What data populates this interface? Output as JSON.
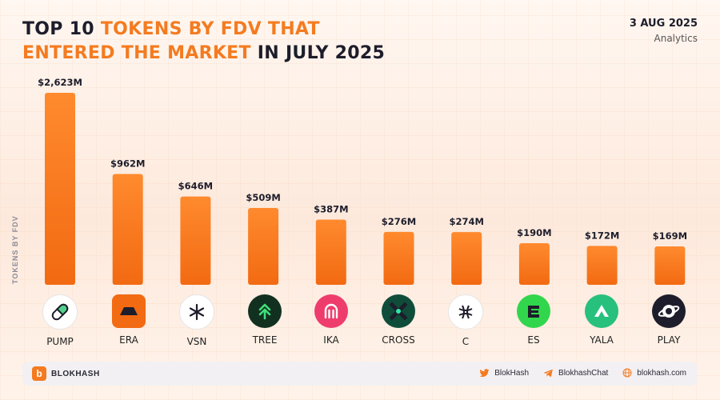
{
  "header": {
    "title_part1": "TOP 10 ",
    "title_part2": "TOKENS BY FDV THAT",
    "title_part3": "ENTERED THE MARKET",
    "title_part4": " IN JULY 2025",
    "date": "3 AUG 2025",
    "subtitle": "Analytics"
  },
  "chart_data": {
    "type": "bar",
    "ylabel": "TOKENS BY FDV",
    "xlabel": "",
    "categories": [
      "PUMP",
      "ERA",
      "VSN",
      "TREE",
      "IKA",
      "CROSS",
      "C",
      "ES",
      "YALA",
      "PLAY"
    ],
    "values": [
      2623,
      962,
      646,
      509,
      387,
      276,
      274,
      190,
      172,
      169
    ],
    "value_labels": [
      "$2,623M",
      "$962M",
      "$646M",
      "$509M",
      "$387M",
      "$276M",
      "$274M",
      "$190M",
      "$172M",
      "$169M"
    ],
    "unit": "$M",
    "scale": "compressed (non-linear) bar heights",
    "bar_color": "#f47b20",
    "grid": false,
    "legend": "none"
  },
  "tokens": [
    {
      "symbol": "PUMP",
      "icon": "pump-pill-icon"
    },
    {
      "symbol": "ERA",
      "icon": "era-icon"
    },
    {
      "symbol": "VSN",
      "icon": "vsn-star-icon"
    },
    {
      "symbol": "TREE",
      "icon": "tree-chevron-icon"
    },
    {
      "symbol": "IKA",
      "icon": "ika-icon"
    },
    {
      "symbol": "CROSS",
      "icon": "cross-icon"
    },
    {
      "symbol": "C",
      "icon": "c-icon"
    },
    {
      "symbol": "ES",
      "icon": "es-icon"
    },
    {
      "symbol": "YALA",
      "icon": "yala-mountain-icon"
    },
    {
      "symbol": "PLAY",
      "icon": "play-planet-icon"
    }
  ],
  "footer": {
    "brand": "BLOKHASH",
    "twitter": "BlokHash",
    "telegram": "BlokhashChat",
    "website": "blokhash.com"
  },
  "colors": {
    "accent": "#f47b20",
    "text_dark": "#1d1d2b"
  }
}
